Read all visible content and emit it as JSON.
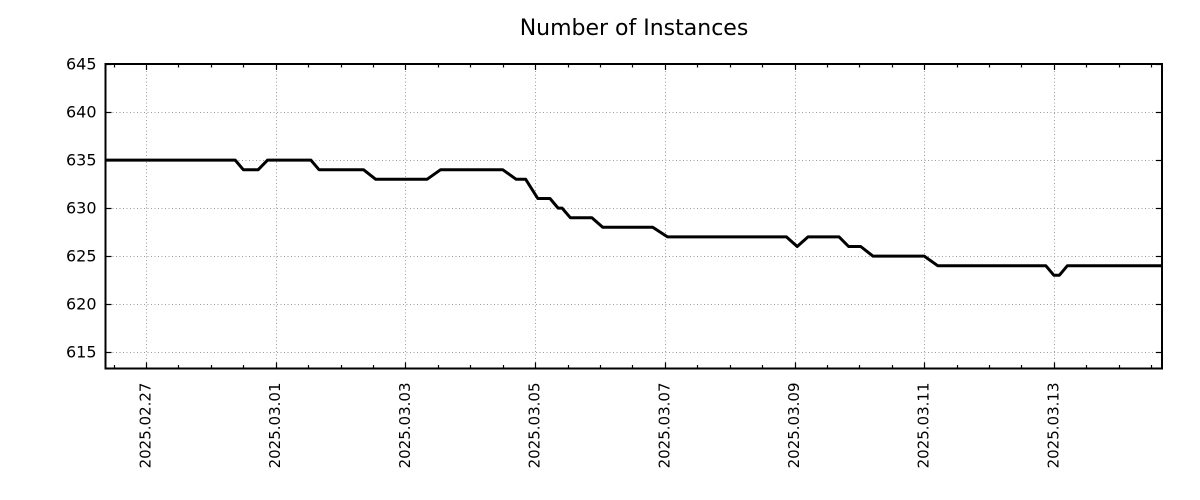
{
  "page": {
    "background_color": "#ffffff"
  },
  "chart_data": {
    "type": "line",
    "title": "Number of Instances",
    "xlabel": "",
    "ylabel": "",
    "x_domain": [
      "2025-02-26T09:00",
      "2025-03-14T16:00"
    ],
    "y_domain": [
      613.3,
      645
    ],
    "y_ticks": [
      615,
      620,
      625,
      630,
      635,
      640,
      645
    ],
    "x_ticks": [
      {
        "date": "2025-02-27T00:00",
        "label": "2025.02.27"
      },
      {
        "date": "2025-03-01T00:00",
        "label": "2025.03.01"
      },
      {
        "date": "2025-03-03T00:00",
        "label": "2025.03.03"
      },
      {
        "date": "2025-03-05T00:00",
        "label": "2025.03.05"
      },
      {
        "date": "2025-03-07T00:00",
        "label": "2025.03.07"
      },
      {
        "date": "2025-03-09T00:00",
        "label": "2025.03.09"
      },
      {
        "date": "2025-03-11T00:00",
        "label": "2025.03.11"
      },
      {
        "date": "2025-03-13T00:00",
        "label": "2025.03.13"
      }
    ],
    "x_major_tick_interval_days": 2,
    "x_minor_tick_interval_days": 0.5,
    "grid": {
      "show": true,
      "style": "dotted",
      "color": "#9e9e9e"
    },
    "axis": {
      "frame_color": "#000000",
      "text_color": "#000000"
    },
    "legend": {
      "show": false
    },
    "series": [
      {
        "name": "Number of Instances",
        "color": "#000000",
        "line_width": 3,
        "points": [
          [
            "2025-02-26T09:00",
            635
          ],
          [
            "2025-02-28T09:00",
            635
          ],
          [
            "2025-02-28T12:00",
            634
          ],
          [
            "2025-02-28T17:30",
            634
          ],
          [
            "2025-02-28T21:00",
            635
          ],
          [
            "2025-03-01T13:00",
            635
          ],
          [
            "2025-03-01T16:00",
            634
          ],
          [
            "2025-03-02T08:30",
            634
          ],
          [
            "2025-03-02T13:00",
            633
          ],
          [
            "2025-03-03T08:00",
            633
          ],
          [
            "2025-03-03T13:00",
            634
          ],
          [
            "2025-03-04T12:00",
            634
          ],
          [
            "2025-03-04T17:00",
            633
          ],
          [
            "2025-03-04T20:30",
            633
          ],
          [
            "2025-03-05T01:00",
            631
          ],
          [
            "2025-03-05T05:30",
            631
          ],
          [
            "2025-03-05T08:30",
            630
          ],
          [
            "2025-03-05T10:00",
            630
          ],
          [
            "2025-03-05T13:00",
            629
          ],
          [
            "2025-03-05T21:00",
            629
          ],
          [
            "2025-03-06T01:00",
            628
          ],
          [
            "2025-03-06T19:30",
            628
          ],
          [
            "2025-03-07T01:00",
            627
          ],
          [
            "2025-03-08T21:00",
            627
          ],
          [
            "2025-03-09T01:00",
            626
          ],
          [
            "2025-03-09T05:00",
            627
          ],
          [
            "2025-03-09T16:30",
            627
          ],
          [
            "2025-03-09T20:00",
            626
          ],
          [
            "2025-03-10T00:30",
            626
          ],
          [
            "2025-03-10T05:00",
            625
          ],
          [
            "2025-03-11T00:00",
            625
          ],
          [
            "2025-03-11T05:00",
            624
          ],
          [
            "2025-03-12T21:00",
            624
          ],
          [
            "2025-03-13T00:00",
            623
          ],
          [
            "2025-03-13T02:00",
            623
          ],
          [
            "2025-03-13T05:00",
            624
          ],
          [
            "2025-03-14T16:00",
            624
          ]
        ]
      }
    ]
  }
}
